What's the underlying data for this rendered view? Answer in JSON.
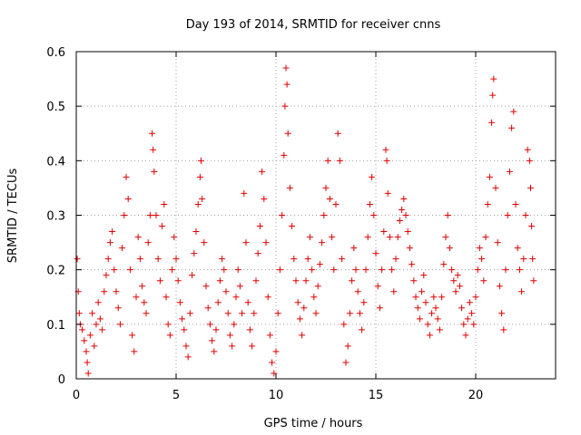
{
  "chart_data": {
    "type": "scatter",
    "title": "Day 193 of 2014, SRMTID for receiver cnns",
    "xlabel": "GPS time / hours",
    "ylabel": "SRMTID / TECUs",
    "xlim": [
      0,
      24
    ],
    "ylim": [
      0,
      0.6
    ],
    "xticks": [
      0,
      5,
      10,
      15,
      20
    ],
    "xtick_labels": [
      "0",
      "5",
      "10",
      "15",
      "20"
    ],
    "yticks": [
      0,
      0.1,
      0.2,
      0.3,
      0.4,
      0.5,
      0.6
    ],
    "ytick_labels": [
      "0",
      "0.1",
      "0.2",
      "0.3",
      "0.4",
      "0.5",
      "0.6"
    ],
    "grid": true,
    "marker": "+",
    "color": "#e00000",
    "series": [
      {
        "name": "SRMTID",
        "points": [
          [
            0.05,
            0.22
          ],
          [
            0.1,
            0.16
          ],
          [
            0.15,
            0.12
          ],
          [
            0.2,
            0.1
          ],
          [
            0.3,
            0.09
          ],
          [
            0.4,
            0.07
          ],
          [
            0.5,
            0.05
          ],
          [
            0.55,
            0.03
          ],
          [
            0.6,
            0.01
          ],
          [
            0.7,
            0.08
          ],
          [
            0.8,
            0.12
          ],
          [
            0.9,
            0.06
          ],
          [
            1.0,
            0.1
          ],
          [
            1.1,
            0.14
          ],
          [
            1.2,
            0.11
          ],
          [
            1.3,
            0.09
          ],
          [
            1.4,
            0.16
          ],
          [
            1.5,
            0.19
          ],
          [
            1.6,
            0.22
          ],
          [
            1.7,
            0.25
          ],
          [
            1.8,
            0.27
          ],
          [
            1.9,
            0.2
          ],
          [
            2.0,
            0.16
          ],
          [
            2.1,
            0.13
          ],
          [
            2.2,
            0.1
          ],
          [
            2.3,
            0.24
          ],
          [
            2.4,
            0.3
          ],
          [
            2.5,
            0.37
          ],
          [
            2.6,
            0.33
          ],
          [
            2.7,
            0.2
          ],
          [
            2.8,
            0.08
          ],
          [
            2.9,
            0.05
          ],
          [
            3.0,
            0.15
          ],
          [
            3.1,
            0.26
          ],
          [
            3.2,
            0.22
          ],
          [
            3.3,
            0.17
          ],
          [
            3.4,
            0.14
          ],
          [
            3.5,
            0.12
          ],
          [
            3.6,
            0.25
          ],
          [
            3.7,
            0.3
          ],
          [
            3.8,
            0.45
          ],
          [
            3.85,
            0.42
          ],
          [
            3.9,
            0.38
          ],
          [
            4.0,
            0.3
          ],
          [
            4.1,
            0.22
          ],
          [
            4.2,
            0.18
          ],
          [
            4.3,
            0.28
          ],
          [
            4.4,
            0.32
          ],
          [
            4.5,
            0.15
          ],
          [
            4.6,
            0.1
          ],
          [
            4.7,
            0.08
          ],
          [
            4.8,
            0.2
          ],
          [
            4.9,
            0.26
          ],
          [
            5.0,
            0.22
          ],
          [
            5.1,
            0.18
          ],
          [
            5.2,
            0.14
          ],
          [
            5.3,
            0.11
          ],
          [
            5.4,
            0.09
          ],
          [
            5.5,
            0.06
          ],
          [
            5.6,
            0.04
          ],
          [
            5.7,
            0.12
          ],
          [
            5.8,
            0.19
          ],
          [
            5.9,
            0.23
          ],
          [
            6.0,
            0.27
          ],
          [
            6.1,
            0.32
          ],
          [
            6.2,
            0.37
          ],
          [
            6.25,
            0.4
          ],
          [
            6.3,
            0.33
          ],
          [
            6.4,
            0.25
          ],
          [
            6.5,
            0.17
          ],
          [
            6.6,
            0.13
          ],
          [
            6.7,
            0.1
          ],
          [
            6.8,
            0.07
          ],
          [
            6.9,
            0.05
          ],
          [
            7.0,
            0.09
          ],
          [
            7.1,
            0.14
          ],
          [
            7.2,
            0.18
          ],
          [
            7.3,
            0.22
          ],
          [
            7.4,
            0.2
          ],
          [
            7.5,
            0.16
          ],
          [
            7.6,
            0.12
          ],
          [
            7.7,
            0.08
          ],
          [
            7.8,
            0.06
          ],
          [
            7.9,
            0.1
          ],
          [
            8.0,
            0.15
          ],
          [
            8.1,
            0.2
          ],
          [
            8.2,
            0.17
          ],
          [
            8.3,
            0.12
          ],
          [
            8.4,
            0.34
          ],
          [
            8.5,
            0.25
          ],
          [
            8.6,
            0.14
          ],
          [
            8.7,
            0.09
          ],
          [
            8.8,
            0.06
          ],
          [
            8.9,
            0.12
          ],
          [
            9.0,
            0.18
          ],
          [
            9.1,
            0.23
          ],
          [
            9.2,
            0.28
          ],
          [
            9.3,
            0.38
          ],
          [
            9.4,
            0.33
          ],
          [
            9.5,
            0.25
          ],
          [
            9.6,
            0.15
          ],
          [
            9.7,
            0.08
          ],
          [
            9.8,
            0.03
          ],
          [
            9.9,
            0.01
          ],
          [
            10.0,
            0.05
          ],
          [
            10.1,
            0.12
          ],
          [
            10.2,
            0.2
          ],
          [
            10.3,
            0.3
          ],
          [
            10.4,
            0.41
          ],
          [
            10.45,
            0.5
          ],
          [
            10.5,
            0.57
          ],
          [
            10.55,
            0.54
          ],
          [
            10.6,
            0.45
          ],
          [
            10.7,
            0.35
          ],
          [
            10.8,
            0.28
          ],
          [
            10.9,
            0.22
          ],
          [
            11.0,
            0.18
          ],
          [
            11.1,
            0.14
          ],
          [
            11.2,
            0.11
          ],
          [
            11.3,
            0.08
          ],
          [
            11.4,
            0.13
          ],
          [
            11.5,
            0.18
          ],
          [
            11.6,
            0.22
          ],
          [
            11.7,
            0.26
          ],
          [
            11.8,
            0.2
          ],
          [
            11.9,
            0.15
          ],
          [
            12.0,
            0.12
          ],
          [
            12.1,
            0.17
          ],
          [
            12.2,
            0.21
          ],
          [
            12.3,
            0.25
          ],
          [
            12.4,
            0.3
          ],
          [
            12.5,
            0.35
          ],
          [
            12.6,
            0.4
          ],
          [
            12.7,
            0.33
          ],
          [
            12.8,
            0.26
          ],
          [
            12.9,
            0.2
          ],
          [
            13.0,
            0.32
          ],
          [
            13.1,
            0.45
          ],
          [
            13.2,
            0.4
          ],
          [
            13.3,
            0.22
          ],
          [
            13.4,
            0.1
          ],
          [
            13.5,
            0.03
          ],
          [
            13.6,
            0.06
          ],
          [
            13.7,
            0.12
          ],
          [
            13.8,
            0.18
          ],
          [
            13.9,
            0.24
          ],
          [
            14.0,
            0.2
          ],
          [
            14.1,
            0.16
          ],
          [
            14.2,
            0.12
          ],
          [
            14.3,
            0.09
          ],
          [
            14.4,
            0.14
          ],
          [
            14.5,
            0.2
          ],
          [
            14.6,
            0.26
          ],
          [
            14.7,
            0.32
          ],
          [
            14.8,
            0.37
          ],
          [
            14.9,
            0.3
          ],
          [
            15.0,
            0.23
          ],
          [
            15.1,
            0.17
          ],
          [
            15.2,
            0.13
          ],
          [
            15.3,
            0.2
          ],
          [
            15.4,
            0.27
          ],
          [
            15.5,
            0.42
          ],
          [
            15.55,
            0.4
          ],
          [
            15.6,
            0.34
          ],
          [
            15.7,
            0.26
          ],
          [
            15.8,
            0.2
          ],
          [
            15.9,
            0.16
          ],
          [
            16.0,
            0.22
          ],
          [
            16.1,
            0.26
          ],
          [
            16.2,
            0.29
          ],
          [
            16.3,
            0.31
          ],
          [
            16.4,
            0.33
          ],
          [
            16.5,
            0.3
          ],
          [
            16.6,
            0.27
          ],
          [
            16.7,
            0.24
          ],
          [
            16.8,
            0.21
          ],
          [
            16.9,
            0.18
          ],
          [
            17.0,
            0.15
          ],
          [
            17.1,
            0.13
          ],
          [
            17.2,
            0.11
          ],
          [
            17.3,
            0.16
          ],
          [
            17.4,
            0.19
          ],
          [
            17.5,
            0.14
          ],
          [
            17.6,
            0.1
          ],
          [
            17.7,
            0.08
          ],
          [
            17.8,
            0.12
          ],
          [
            17.9,
            0.15
          ],
          [
            18.0,
            0.13
          ],
          [
            18.1,
            0.11
          ],
          [
            18.2,
            0.09
          ],
          [
            18.3,
            0.15
          ],
          [
            18.4,
            0.21
          ],
          [
            18.5,
            0.26
          ],
          [
            18.6,
            0.3
          ],
          [
            18.7,
            0.24
          ],
          [
            18.8,
            0.2
          ],
          [
            18.9,
            0.18
          ],
          [
            19.0,
            0.16
          ],
          [
            19.1,
            0.19
          ],
          [
            19.2,
            0.17
          ],
          [
            19.3,
            0.13
          ],
          [
            19.4,
            0.1
          ],
          [
            19.5,
            0.08
          ],
          [
            19.6,
            0.11
          ],
          [
            19.7,
            0.14
          ],
          [
            19.8,
            0.12
          ],
          [
            19.9,
            0.1
          ],
          [
            20.0,
            0.15
          ],
          [
            20.1,
            0.2
          ],
          [
            20.2,
            0.24
          ],
          [
            20.3,
            0.22
          ],
          [
            20.4,
            0.18
          ],
          [
            20.5,
            0.26
          ],
          [
            20.6,
            0.32
          ],
          [
            20.7,
            0.37
          ],
          [
            20.8,
            0.47
          ],
          [
            20.85,
            0.52
          ],
          [
            20.9,
            0.55
          ],
          [
            21.0,
            0.35
          ],
          [
            21.1,
            0.25
          ],
          [
            21.2,
            0.17
          ],
          [
            21.3,
            0.12
          ],
          [
            21.4,
            0.09
          ],
          [
            21.5,
            0.2
          ],
          [
            21.6,
            0.3
          ],
          [
            21.7,
            0.38
          ],
          [
            21.8,
            0.46
          ],
          [
            21.9,
            0.49
          ],
          [
            22.0,
            0.32
          ],
          [
            22.1,
            0.24
          ],
          [
            22.2,
            0.2
          ],
          [
            22.3,
            0.16
          ],
          [
            22.4,
            0.22
          ],
          [
            22.5,
            0.3
          ],
          [
            22.6,
            0.42
          ],
          [
            22.7,
            0.4
          ],
          [
            22.75,
            0.35
          ],
          [
            22.8,
            0.28
          ],
          [
            22.85,
            0.22
          ],
          [
            22.9,
            0.18
          ]
        ]
      }
    ]
  }
}
